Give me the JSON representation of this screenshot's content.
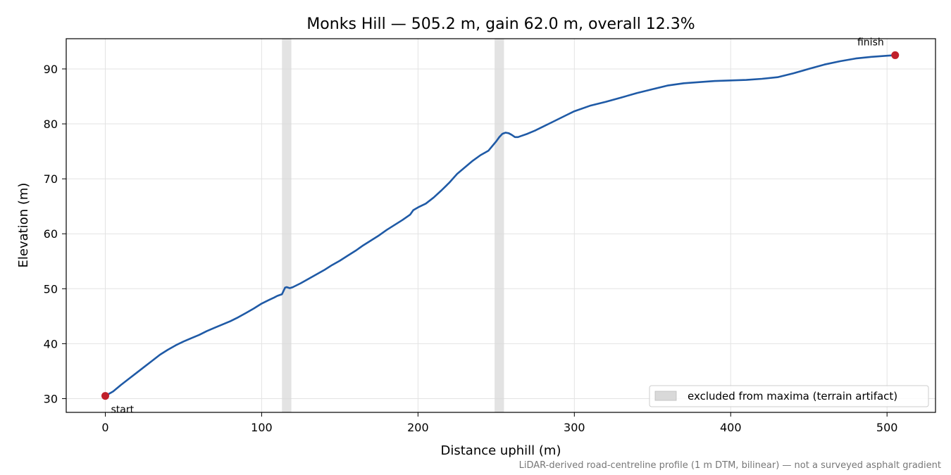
{
  "chart_data": {
    "type": "line",
    "title": "Monks Hill — 505.2 m, gain 62.0 m, overall 12.3%",
    "xlabel": "Distance uphill (m)",
    "ylabel": "Elevation (m)",
    "xlim": [
      -25,
      531
    ],
    "ylim": [
      27.5,
      95.5
    ],
    "xticks": [
      0,
      100,
      200,
      300,
      400,
      500
    ],
    "yticks": [
      30,
      40,
      50,
      60,
      70,
      80,
      90
    ],
    "grid": true,
    "legend_position": "lower-right",
    "series": [
      {
        "color": "#1f5aa6",
        "x": [
          0,
          5,
          10,
          15,
          20,
          25,
          30,
          35,
          40,
          45,
          50,
          55,
          60,
          65,
          70,
          75,
          80,
          85,
          90,
          95,
          100,
          105,
          108,
          110,
          113,
          115,
          116,
          118,
          120,
          125,
          130,
          135,
          140,
          145,
          150,
          155,
          160,
          165,
          170,
          175,
          180,
          185,
          190,
          195,
          197,
          200,
          205,
          210,
          215,
          220,
          225,
          230,
          235,
          240,
          245,
          250,
          252,
          254,
          256,
          258,
          260,
          262,
          264,
          266,
          270,
          275,
          280,
          285,
          290,
          295,
          300,
          310,
          320,
          330,
          340,
          350,
          360,
          370,
          380,
          390,
          400,
          410,
          420,
          430,
          440,
          450,
          460,
          470,
          480,
          490,
          500,
          505.2
        ],
        "y": [
          30.5,
          31.3,
          32.5,
          33.6,
          34.7,
          35.8,
          36.9,
          38.0,
          38.9,
          39.7,
          40.4,
          41.0,
          41.6,
          42.3,
          42.9,
          43.5,
          44.1,
          44.8,
          45.6,
          46.4,
          47.3,
          48.0,
          48.4,
          48.7,
          49.0,
          50.2,
          50.3,
          50.1,
          50.3,
          51.0,
          51.8,
          52.6,
          53.4,
          54.3,
          55.1,
          56.0,
          56.9,
          57.9,
          58.8,
          59.7,
          60.7,
          61.6,
          62.5,
          63.5,
          64.3,
          64.8,
          65.5,
          66.6,
          67.9,
          69.3,
          70.9,
          72.1,
          73.3,
          74.3,
          75.1,
          76.8,
          77.6,
          78.2,
          78.4,
          78.3,
          78.0,
          77.6,
          77.6,
          77.8,
          78.2,
          78.8,
          79.5,
          80.2,
          80.9,
          81.6,
          82.3,
          83.3,
          84.0,
          84.8,
          85.6,
          86.3,
          87.0,
          87.4,
          87.6,
          87.8,
          87.9,
          88.0,
          88.2,
          88.5,
          89.2,
          90.0,
          90.8,
          91.4,
          91.9,
          92.2,
          92.4,
          92.5
        ]
      }
    ],
    "shaded_regions": [
      {
        "x0": 113,
        "x1": 119,
        "color": "#d9d9d9"
      },
      {
        "x0": 249,
        "x1": 255,
        "color": "#d9d9d9"
      }
    ],
    "markers": [
      {
        "x": 0,
        "y": 30.5,
        "label": "start",
        "color": "#c0202b"
      },
      {
        "x": 505.2,
        "y": 92.5,
        "label": "finish",
        "color": "#c0202b"
      }
    ],
    "legend": {
      "entry": "excluded from maxima (terrain artifact)",
      "swatch_color": "#d9d9d9"
    },
    "caption": "LiDAR-derived road-centreline profile (1 m DTM, bilinear) — not a surveyed asphalt gradient"
  }
}
